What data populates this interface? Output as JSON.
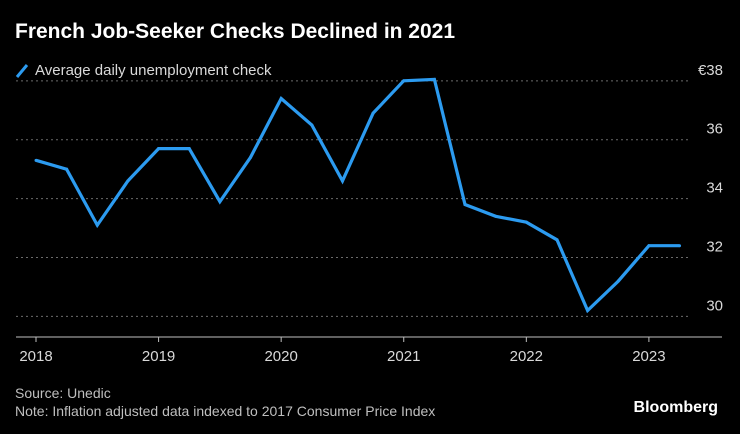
{
  "title": "French Job-Seeker Checks Declined in 2021",
  "legend": {
    "label": "Average daily unemployment check"
  },
  "footer": {
    "source": "Source: Unedic",
    "note": "Note: Inflation adjusted data indexed to 2017 Consumer Price Index"
  },
  "brand": "Bloomberg",
  "colors": {
    "background": "#000000",
    "line": "#2c9bf0",
    "grid": "#6b6b6b",
    "axis": "#bfbfbf",
    "tick_text": "#d9d9d9"
  },
  "chart_data": {
    "type": "line",
    "title": "French Job-Seeker Checks Declined in 2021",
    "xlabel": "",
    "ylabel": "",
    "y_unit_prefix": "€",
    "ylim": [
      29.3,
      38.3
    ],
    "xlim": [
      2018.0,
      2023.58
    ],
    "yticks": [
      30,
      32,
      34,
      36,
      38
    ],
    "ytick_labels": [
      "30",
      "32",
      "34",
      "36",
      "€38"
    ],
    "xticks": [
      2018,
      2019,
      2020,
      2021,
      2022,
      2023
    ],
    "xtick_labels": [
      "2018",
      "2019",
      "2020",
      "2021",
      "2022",
      "2023"
    ],
    "grid": true,
    "legend_position": "top-left",
    "series": [
      {
        "name": "Average daily unemployment check",
        "x": [
          2018.0,
          2018.25,
          2018.5,
          2018.75,
          2019.0,
          2019.25,
          2019.5,
          2019.75,
          2020.0,
          2020.25,
          2020.5,
          2020.75,
          2021.0,
          2021.25,
          2021.5,
          2021.75,
          2022.0,
          2022.25,
          2022.5,
          2022.75,
          2023.0,
          2023.25
        ],
        "values": [
          35.3,
          35.0,
          33.1,
          34.6,
          35.7,
          35.7,
          33.9,
          35.4,
          37.4,
          36.5,
          34.6,
          36.9,
          38.0,
          38.05,
          33.8,
          33.4,
          33.2,
          32.6,
          30.2,
          31.2,
          32.4,
          32.4
        ]
      }
    ]
  }
}
